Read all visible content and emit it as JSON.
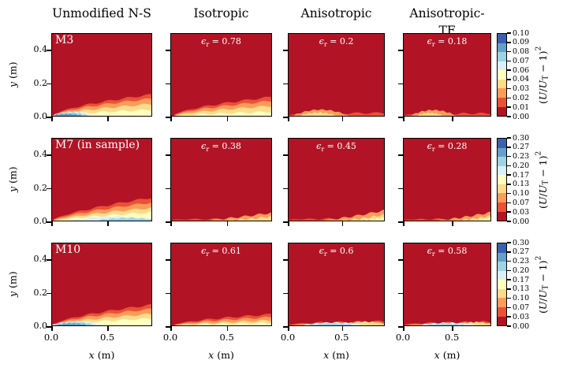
{
  "figure": {
    "column_headers": [
      "Unmodified N-S",
      "Isotropic",
      "Anisotropic",
      "Anisotropic-TF"
    ],
    "row_labels": [
      "M3",
      "M7 (in sample)",
      "M10"
    ],
    "x_axis": {
      "var": "x",
      "unit": " (m)",
      "range": [
        0,
        0.9
      ],
      "ticks": [
        {
          "v": 0.0,
          "t": "0.0"
        },
        {
          "v": 0.5,
          "t": "0.5"
        }
      ]
    },
    "y_axis": {
      "var": "y",
      "unit": " (m)",
      "range": [
        0,
        0.5
      ],
      "ticks": [
        {
          "v": 0.0,
          "t": "0.0"
        },
        {
          "v": 0.2,
          "t": "0.2"
        },
        {
          "v": 0.4,
          "t": "0.4"
        }
      ]
    },
    "annotation_template": {
      "var": "ϵ",
      "sub": "r",
      "eq": " = "
    },
    "colorbar_label": {
      "open": "(",
      "u1": "U",
      "slash": "/",
      "u2": "U",
      "sub": "T",
      "minus_one": " − 1)",
      "sup": "2"
    },
    "colormap": [
      "#b21425",
      "#ea5236",
      "#fa9c5a",
      "#fedb8b",
      "#ffffbf",
      "#daf0f6",
      "#9fd3e4",
      "#64a0ca",
      "#3c60ab"
    ],
    "annotation_color": "#ffffff",
    "spine_color": "#000000"
  },
  "rows": [
    {
      "colorbar_ticks": [
        "0.10",
        "0.09",
        "0.08",
        "0.07",
        "0.06",
        "0.04",
        "0.03",
        "0.02",
        "0.01",
        "0.00"
      ],
      "plots": [
        {
          "label": "M3",
          "contour": {
            "layers": [
              {
                "t": "w",
                "ci": 1,
                "h": 0.26,
                "x0": 0.01,
                "p": 0.62
              },
              {
                "t": "w",
                "ci": 2,
                "h": 0.21,
                "x0": 0.02,
                "p": 0.62
              },
              {
                "t": "w",
                "ci": 3,
                "h": 0.145,
                "x0": 0.03,
                "p": 0.65
              },
              {
                "t": "w",
                "ci": 4,
                "h": 0.075,
                "x0": 0.04,
                "p": 0.7
              },
              {
                "t": "m",
                "ci": 5,
                "x0": 0.0,
                "x1": 0.42,
                "h": 0.05
              },
              {
                "t": "m",
                "ci": 6,
                "x0": 0.0,
                "x1": 0.37,
                "h": 0.038
              },
              {
                "t": "m",
                "ci": 7,
                "x0": 0.0,
                "x1": 0.3,
                "h": 0.024
              }
            ]
          }
        },
        {
          "eps": "0.78",
          "contour": {
            "layers": [
              {
                "t": "w",
                "ci": 1,
                "h": 0.23,
                "x0": 0.02,
                "p": 0.62
              },
              {
                "t": "w",
                "ci": 2,
                "h": 0.18,
                "x0": 0.03,
                "p": 0.62
              },
              {
                "t": "w",
                "ci": 3,
                "h": 0.12,
                "x0": 0.04,
                "p": 0.65
              },
              {
                "t": "w",
                "ci": 4,
                "h": 0.05,
                "x0": 0.06,
                "p": 0.75
              }
            ]
          }
        },
        {
          "eps": "0.2",
          "contour": {
            "layers": [
              {
                "t": "w",
                "ci": 1,
                "h": 0.035,
                "x0": 0.0,
                "p": 0.25
              },
              {
                "t": "m",
                "ci": 2,
                "x0": 0.05,
                "x1": 0.62,
                "h": 0.075
              },
              {
                "t": "m",
                "ci": 3,
                "x0": 0.12,
                "x1": 0.5,
                "h": 0.04
              }
            ]
          }
        },
        {
          "eps": "0.18",
          "contour": {
            "layers": [
              {
                "t": "w",
                "ci": 1,
                "h": 0.03,
                "x0": 0.0,
                "p": 0.25
              },
              {
                "t": "m",
                "ci": 2,
                "x0": 0.08,
                "x1": 0.6,
                "h": 0.07
              },
              {
                "t": "m",
                "ci": 3,
                "x0": 0.15,
                "x1": 0.45,
                "h": 0.035
              }
            ]
          }
        }
      ]
    },
    {
      "colorbar_ticks": [
        "0.30",
        "0.27",
        "0.23",
        "0.20",
        "0.17",
        "0.13",
        "0.10",
        "0.07",
        "0.03",
        "0.00"
      ],
      "plots": [
        {
          "label": "M7 (in sample)",
          "contour": {
            "layers": [
              {
                "t": "w",
                "ci": 1,
                "h": 0.28,
                "x0": 0.0,
                "p": 0.7
              },
              {
                "t": "w",
                "ci": 2,
                "h": 0.22,
                "x0": 0.01,
                "p": 0.7
              },
              {
                "t": "w",
                "ci": 3,
                "h": 0.155,
                "x0": 0.02,
                "p": 0.72
              },
              {
                "t": "w",
                "ci": 4,
                "h": 0.1,
                "x0": 0.03,
                "p": 0.75
              },
              {
                "t": "m",
                "ci": 5,
                "x0": 0.2,
                "x1": 1.08,
                "h": 0.05
              },
              {
                "t": "m",
                "ci": 6,
                "x0": 0.45,
                "x1": 1.08,
                "h": 0.032
              }
            ]
          }
        },
        {
          "eps": "0.38",
          "contour": {
            "layers": [
              {
                "t": "w",
                "ci": 1,
                "h": 0.022,
                "x0": 0.0,
                "p": 0.2
              },
              {
                "t": "w",
                "ci": 2,
                "h": 0.095,
                "x0": 0.3,
                "p": 1.3
              },
              {
                "t": "w",
                "ci": 3,
                "h": 0.05,
                "x0": 0.5,
                "p": 1.5
              }
            ]
          }
        },
        {
          "eps": "0.45",
          "contour": {
            "layers": [
              {
                "t": "w",
                "ci": 1,
                "h": 0.025,
                "x0": 0.0,
                "p": 0.2
              },
              {
                "t": "w",
                "ci": 2,
                "h": 0.125,
                "x0": 0.3,
                "p": 1.4
              },
              {
                "t": "w",
                "ci": 3,
                "h": 0.07,
                "x0": 0.5,
                "p": 1.5
              },
              {
                "t": "w",
                "ci": 4,
                "h": 0.035,
                "x0": 0.72,
                "p": 1.6
              }
            ]
          }
        },
        {
          "eps": "0.28",
          "contour": {
            "layers": [
              {
                "t": "w",
                "ci": 1,
                "h": 0.022,
                "x0": 0.0,
                "p": 0.2
              },
              {
                "t": "w",
                "ci": 2,
                "h": 0.1,
                "x0": 0.33,
                "p": 1.4
              },
              {
                "t": "w",
                "ci": 3,
                "h": 0.055,
                "x0": 0.55,
                "p": 1.5
              },
              {
                "t": "w",
                "ci": 4,
                "h": 0.03,
                "x0": 0.75,
                "p": 1.6
              }
            ]
          }
        }
      ]
    },
    {
      "colorbar_ticks": [
        "0.30",
        "0.27",
        "0.23",
        "0.20",
        "0.17",
        "0.13",
        "0.10",
        "0.07",
        "0.03",
        "0.00"
      ],
      "plots": [
        {
          "label": "M10",
          "contour": {
            "layers": [
              {
                "t": "w",
                "ci": 1,
                "h": 0.25,
                "x0": 0.01,
                "p": 0.62
              },
              {
                "t": "w",
                "ci": 2,
                "h": 0.2,
                "x0": 0.02,
                "p": 0.62
              },
              {
                "t": "w",
                "ci": 3,
                "h": 0.14,
                "x0": 0.03,
                "p": 0.65
              },
              {
                "t": "w",
                "ci": 4,
                "h": 0.085,
                "x0": 0.04,
                "p": 0.68
              },
              {
                "t": "m",
                "ci": 5,
                "x0": 0.0,
                "x1": 0.5,
                "h": 0.05
              },
              {
                "t": "m",
                "ci": 6,
                "x0": 0.02,
                "x1": 0.44,
                "h": 0.04
              },
              {
                "t": "m",
                "ci": 7,
                "x0": 0.04,
                "x1": 0.36,
                "h": 0.025
              }
            ]
          }
        },
        {
          "eps": "0.61",
          "contour": {
            "layers": [
              {
                "t": "w",
                "ci": 1,
                "h": 0.135,
                "x0": 0.02,
                "p": 0.6
              },
              {
                "t": "w",
                "ci": 2,
                "h": 0.1,
                "x0": 0.03,
                "p": 0.62
              },
              {
                "t": "w",
                "ci": 3,
                "h": 0.06,
                "x0": 0.04,
                "p": 0.7
              },
              {
                "t": "w",
                "ci": 4,
                "h": 0.03,
                "x0": 0.06,
                "p": 0.8
              }
            ]
          }
        },
        {
          "eps": "0.6",
          "contour": {
            "layers": [
              {
                "t": "w",
                "ci": 1,
                "h": 0.05,
                "x0": 0.0,
                "p": 0.35
              },
              {
                "t": "w",
                "ci": 2,
                "h": 0.035,
                "x0": 0.05,
                "p": 0.4
              },
              {
                "t": "m",
                "ci": 3,
                "x0": 0.55,
                "x1": 1.05,
                "h": 0.045
              },
              {
                "t": "m",
                "ci": 5,
                "x0": 0.15,
                "x1": 0.8,
                "h": 0.035
              },
              {
                "t": "m",
                "ci": 6,
                "x0": 0.2,
                "x1": 0.7,
                "h": 0.025
              }
            ]
          }
        },
        {
          "eps": "0.58",
          "contour": {
            "layers": [
              {
                "t": "w",
                "ci": 1,
                "h": 0.045,
                "x0": 0.0,
                "p": 0.35
              },
              {
                "t": "w",
                "ci": 2,
                "h": 0.03,
                "x0": 0.05,
                "p": 0.4
              },
              {
                "t": "m",
                "ci": 3,
                "x0": 0.6,
                "x1": 1.05,
                "h": 0.04
              },
              {
                "t": "m",
                "ci": 5,
                "x0": 0.18,
                "x1": 0.85,
                "h": 0.032
              },
              {
                "t": "m",
                "ci": 6,
                "x0": 0.25,
                "x1": 0.72,
                "h": 0.022
              }
            ]
          }
        }
      ]
    }
  ],
  "chart_data": {
    "type": "heatmap",
    "subtype": "filled-contour error fields, 3x4 grid of subplots",
    "grid": {
      "rows": [
        "M3",
        "M7 (in sample)",
        "M10"
      ],
      "columns": [
        "Unmodified N-S",
        "Isotropic",
        "Anisotropic",
        "Anisotropic-TF"
      ]
    },
    "quantity": "(U/U_T − 1)^2",
    "eps_r_values": [
      [
        null,
        0.78,
        0.2,
        0.18
      ],
      [
        null,
        0.38,
        0.45,
        0.28
      ],
      [
        null,
        0.61,
        0.6,
        0.58
      ]
    ],
    "xlabel": "x (m)",
    "ylabel": "y (m)",
    "xlim": [
      0,
      0.9
    ],
    "ylim": [
      0,
      0.5
    ],
    "x_ticks": [
      0.0,
      0.5
    ],
    "y_ticks": [
      0.0,
      0.2,
      0.4
    ],
    "colorbars": [
      {
        "applies_to_row": "M3",
        "range": [
          0.0,
          0.1
        ],
        "tick_labels": [
          "0.00",
          "0.01",
          "0.02",
          "0.03",
          "0.04",
          "0.06",
          "0.07",
          "0.08",
          "0.09",
          "0.10"
        ]
      },
      {
        "applies_to_row": "M7 (in sample)",
        "range": [
          0.0,
          0.3
        ],
        "tick_labels": [
          "0.00",
          "0.03",
          "0.07",
          "0.10",
          "0.13",
          "0.17",
          "0.20",
          "0.23",
          "0.27",
          "0.30"
        ]
      },
      {
        "applies_to_row": "M10",
        "range": [
          0.0,
          0.3
        ],
        "tick_labels": [
          "0.00",
          "0.03",
          "0.07",
          "0.10",
          "0.13",
          "0.17",
          "0.20",
          "0.23",
          "0.27",
          "0.30"
        ]
      }
    ],
    "colormap": "RdYlBu, 9 discrete levels, red = low error, blue = high error",
    "legend_position": "none",
    "grid_lines": false,
    "field_pattern": "Error concentrated in a thin boundary-layer wedge along the bottom wall; bulk of each domain is at the lowest contour level (dark red)."
  }
}
